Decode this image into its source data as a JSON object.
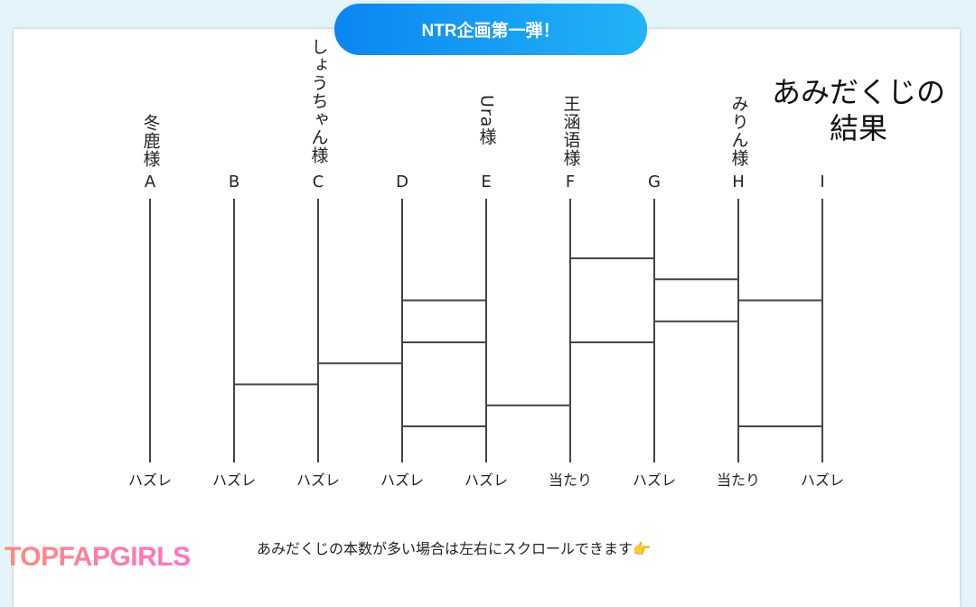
{
  "header": {
    "title": "NTR企画第一弾！"
  },
  "diagram": {
    "title": "あみだくじの結果",
    "columns": [
      {
        "letter": "A",
        "name": "冬鹿様",
        "result": "ハズレ"
      },
      {
        "letter": "B",
        "name": "",
        "result": "ハズレ"
      },
      {
        "letter": "C",
        "name": "しょうちゃん様",
        "result": "ハズレ"
      },
      {
        "letter": "D",
        "name": "",
        "result": "ハズレ"
      },
      {
        "letter": "E",
        "name": "Ura様",
        "result": "ハズレ"
      },
      {
        "letter": "F",
        "name": "王涵语様",
        "result": "当たり"
      },
      {
        "letter": "G",
        "name": "",
        "result": "ハズレ"
      },
      {
        "letter": "H",
        "name": "みりん様",
        "result": "当たり"
      },
      {
        "letter": "I",
        "name": "",
        "result": "ハズレ"
      }
    ],
    "rungs": [
      {
        "from": "F",
        "to": "G",
        "row": 0
      },
      {
        "from": "G",
        "to": "H",
        "row": 1
      },
      {
        "from": "H",
        "to": "I",
        "row": 2
      },
      {
        "from": "D",
        "to": "E",
        "row": 2
      },
      {
        "from": "G",
        "to": "H",
        "row": 3
      },
      {
        "from": "D",
        "to": "E",
        "row": 4
      },
      {
        "from": "F",
        "to": "G",
        "row": 4
      },
      {
        "from": "C",
        "to": "D",
        "row": 5
      },
      {
        "from": "B",
        "to": "C",
        "row": 6
      },
      {
        "from": "E",
        "to": "F",
        "row": 7
      },
      {
        "from": "D",
        "to": "E",
        "row": 8
      },
      {
        "from": "H",
        "to": "I",
        "row": 8
      }
    ]
  },
  "note": "あみだくじの本数が多い場合は左右にスクロールできます",
  "note_icon": "pointing-hand-icon",
  "watermark": "TOPFAPGIRLS"
}
